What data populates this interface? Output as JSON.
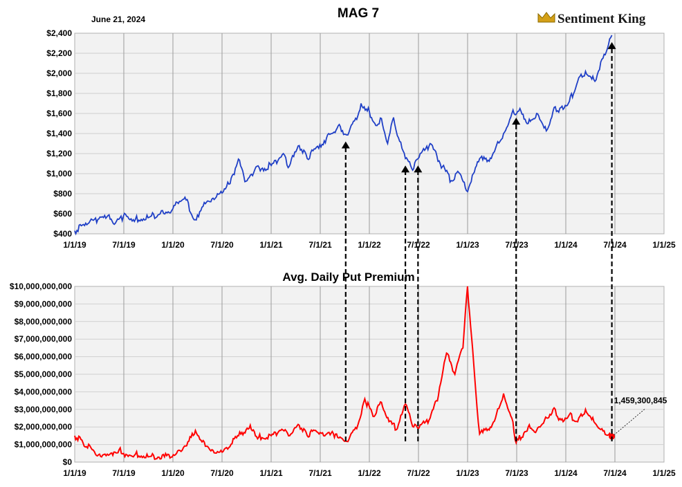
{
  "header": {
    "date": "June 21, 2024",
    "title": "MAG 7",
    "brand": "Sentiment King"
  },
  "colors": {
    "price_line": "#1f3fc6",
    "premium_line": "#ff0000",
    "plot_bg": "#f2f2f2",
    "grid": "#cfcfcf",
    "arrow": "#000000"
  },
  "chart_data": [
    {
      "type": "line",
      "title": "MAG 7",
      "x_ticks": [
        "1/1/19",
        "7/1/19",
        "1/1/20",
        "7/1/20",
        "1/1/21",
        "7/1/21",
        "1/1/22",
        "7/1/22",
        "1/1/23",
        "7/1/23",
        "1/1/24",
        "7/1/24",
        "1/1/25"
      ],
      "y_ticks": [
        "$400",
        "$600",
        "$800",
        "$1,000",
        "$1,200",
        "$1,400",
        "$1,600",
        "$1,800",
        "$2,000",
        "$2,200",
        "$2,400"
      ],
      "xlim": [
        "2019-01-01",
        "2025-01-01"
      ],
      "ylim": [
        400,
        2400
      ],
      "grid": true,
      "series": [
        {
          "points": [
            [
              "2019-01-01",
              430
            ],
            [
              "2019-02-15",
              490
            ],
            [
              "2019-04-01",
              550
            ],
            [
              "2019-05-01",
              570
            ],
            [
              "2019-06-01",
              505
            ],
            [
              "2019-07-01",
              575
            ],
            [
              "2019-08-15",
              545
            ],
            [
              "2019-10-01",
              560
            ],
            [
              "2019-11-15",
              600
            ],
            [
              "2020-01-01",
              650
            ],
            [
              "2020-02-15",
              765
            ],
            [
              "2020-03-20",
              540
            ],
            [
              "2020-05-01",
              700
            ],
            [
              "2020-06-15",
              800
            ],
            [
              "2020-08-01",
              900
            ],
            [
              "2020-09-01",
              1145
            ],
            [
              "2020-09-25",
              920
            ],
            [
              "2020-11-01",
              1040
            ],
            [
              "2021-01-01",
              1080
            ],
            [
              "2021-02-15",
              1200
            ],
            [
              "2021-03-05",
              1060
            ],
            [
              "2021-04-15",
              1280
            ],
            [
              "2021-05-15",
              1150
            ],
            [
              "2021-07-01",
              1290
            ],
            [
              "2021-08-15",
              1400
            ],
            [
              "2021-09-15",
              1470
            ],
            [
              "2021-10-05",
              1390
            ],
            [
              "2021-11-15",
              1540
            ],
            [
              "2021-12-01",
              1700
            ],
            [
              "2022-01-01",
              1620
            ],
            [
              "2022-01-25",
              1480
            ],
            [
              "2022-02-15",
              1550
            ],
            [
              "2022-03-10",
              1300
            ],
            [
              "2022-04-01",
              1560
            ],
            [
              "2022-04-15",
              1380
            ],
            [
              "2022-05-15",
              1150
            ],
            [
              "2022-06-15",
              1050
            ],
            [
              "2022-07-01",
              1150
            ],
            [
              "2022-08-15",
              1300
            ],
            [
              "2022-09-30",
              1070
            ],
            [
              "2022-11-01",
              930
            ],
            [
              "2022-11-30",
              1010
            ],
            [
              "2022-12-28",
              830
            ],
            [
              "2023-01-15",
              920
            ],
            [
              "2023-02-15",
              1150
            ],
            [
              "2023-03-15",
              1120
            ],
            [
              "2023-04-15",
              1250
            ],
            [
              "2023-05-15",
              1400
            ],
            [
              "2023-06-15",
              1600
            ],
            [
              "2023-07-15",
              1650
            ],
            [
              "2023-08-15",
              1500
            ],
            [
              "2023-09-15",
              1600
            ],
            [
              "2023-10-25",
              1440
            ],
            [
              "2023-11-15",
              1620
            ],
            [
              "2023-12-15",
              1660
            ],
            [
              "2024-01-15",
              1720
            ],
            [
              "2024-02-15",
              1920
            ],
            [
              "2024-03-15",
              2020
            ],
            [
              "2024-04-19",
              1920
            ],
            [
              "2024-05-15",
              2140
            ],
            [
              "2024-06-21",
              2380
            ]
          ]
        }
      ]
    },
    {
      "type": "line",
      "title": "Avg. Daily Put Premium",
      "x_ticks": [
        "1/1/19",
        "7/1/19",
        "1/1/20",
        "7/1/20",
        "1/1/21",
        "7/1/21",
        "1/1/22",
        "7/1/22",
        "1/1/23",
        "7/1/23",
        "1/1/24",
        "7/1/24",
        "1/1/25"
      ],
      "y_ticks": [
        "$0",
        "$1,000,000,000",
        "$2,000,000,000",
        "$3,000,000,000",
        "$4,000,000,000",
        "$5,000,000,000",
        "$6,000,000,000",
        "$7,000,000,000",
        "$8,000,000,000",
        "$9,000,000,000",
        "$10,000,000,000"
      ],
      "xlim": [
        "2019-01-01",
        "2025-01-01"
      ],
      "ylim": [
        0,
        10000000000
      ],
      "grid": true,
      "annotation": "1,459,300,845",
      "series": [
        {
          "points": [
            [
              "2019-01-01",
              1500000000
            ],
            [
              "2019-02-01",
              1100000000
            ],
            [
              "2019-03-15",
              600000000
            ],
            [
              "2019-04-15",
              400000000
            ],
            [
              "2019-05-15",
              500000000
            ],
            [
              "2019-06-15",
              700000000
            ],
            [
              "2019-07-15",
              400000000
            ],
            [
              "2019-08-15",
              450000000
            ],
            [
              "2019-10-01",
              300000000
            ],
            [
              "2019-12-01",
              300000000
            ],
            [
              "2020-01-15",
              500000000
            ],
            [
              "2020-03-01",
              1200000000
            ],
            [
              "2020-03-25",
              1800000000
            ],
            [
              "2020-05-01",
              900000000
            ],
            [
              "2020-06-15",
              600000000
            ],
            [
              "2020-07-15",
              800000000
            ],
            [
              "2020-09-10",
              1600000000
            ],
            [
              "2020-10-15",
              2100000000
            ],
            [
              "2020-11-15",
              1400000000
            ],
            [
              "2021-01-01",
              1500000000
            ],
            [
              "2021-02-01",
              1800000000
            ],
            [
              "2021-03-15",
              1600000000
            ],
            [
              "2021-04-15",
              2100000000
            ],
            [
              "2021-05-15",
              1500000000
            ],
            [
              "2021-06-15",
              1800000000
            ],
            [
              "2021-07-15",
              1500000000
            ],
            [
              "2021-09-01",
              1600000000
            ],
            [
              "2021-10-05",
              1200000000
            ],
            [
              "2021-11-15",
              1900000000
            ],
            [
              "2021-12-15",
              3600000000
            ],
            [
              "2022-01-15",
              2600000000
            ],
            [
              "2022-02-15",
              3400000000
            ],
            [
              "2022-03-15",
              2300000000
            ],
            [
              "2022-04-15",
              1900000000
            ],
            [
              "2022-05-15",
              3300000000
            ],
            [
              "2022-06-15",
              2000000000
            ],
            [
              "2022-07-01",
              1900000000
            ],
            [
              "2022-08-15",
              2500000000
            ],
            [
              "2022-09-15",
              3800000000
            ],
            [
              "2022-10-15",
              6200000000
            ],
            [
              "2022-11-15",
              5000000000
            ],
            [
              "2022-12-15",
              6500000000
            ],
            [
              "2023-01-01",
              10000000000
            ],
            [
              "2023-02-01",
              4000000000
            ],
            [
              "2023-02-15",
              1600000000
            ],
            [
              "2023-03-15",
              1800000000
            ],
            [
              "2023-04-15",
              2500000000
            ],
            [
              "2023-05-15",
              3900000000
            ],
            [
              "2023-06-15",
              2500000000
            ],
            [
              "2023-07-01",
              1100000000
            ],
            [
              "2023-08-15",
              2000000000
            ],
            [
              "2023-09-15",
              1800000000
            ],
            [
              "2023-10-15",
              2400000000
            ],
            [
              "2023-11-15",
              3000000000
            ],
            [
              "2023-12-15",
              2400000000
            ],
            [
              "2024-01-15",
              2700000000
            ],
            [
              "2024-02-15",
              2300000000
            ],
            [
              "2024-03-15",
              3000000000
            ],
            [
              "2024-04-15",
              2300000000
            ],
            [
              "2024-05-15",
              1900000000
            ],
            [
              "2024-06-21",
              1459300845
            ]
          ]
        }
      ]
    }
  ]
}
